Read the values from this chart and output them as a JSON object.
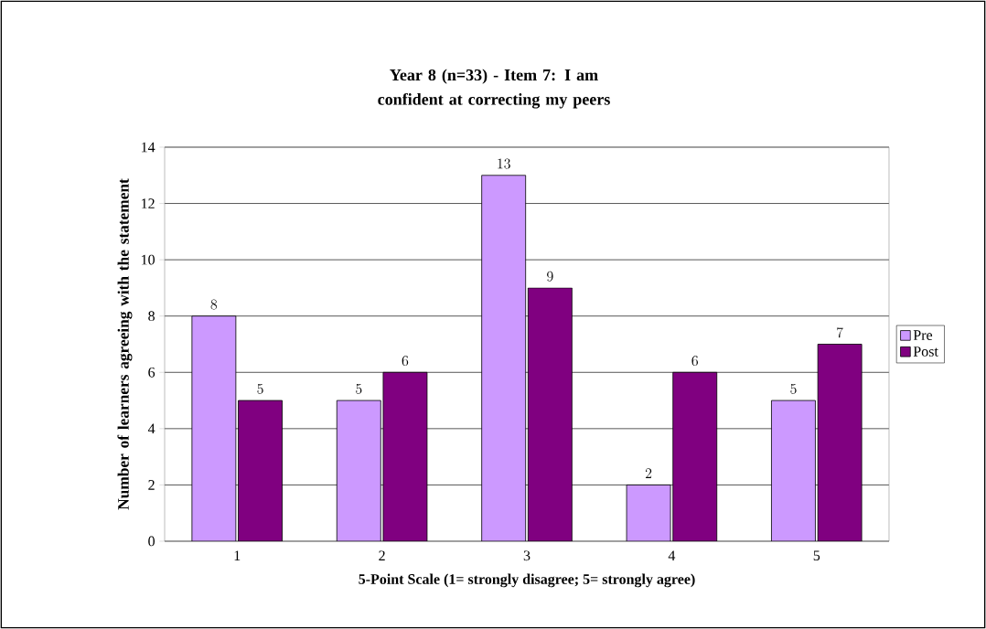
{
  "chart_data": {
    "type": "bar",
    "title": "Year 8 (n=33) - Item 7: I am confident at correcting my peers",
    "xlabel": "5-Point Scale (1= strongly disagree; 5= strongly agree)",
    "ylabel": "Number of learners agreeing with the statement",
    "categories": [
      "1",
      "2",
      "3",
      "4",
      "5"
    ],
    "series": [
      {
        "name": "Pre",
        "color": "#cc99ff",
        "values": [
          8,
          5,
          13,
          2,
          5
        ]
      },
      {
        "name": "Post",
        "color": "#800080",
        "values": [
          5,
          6,
          9,
          6,
          7
        ]
      }
    ],
    "ylim": [
      0,
      14
    ],
    "yticks": [
      0,
      2,
      4,
      6,
      8,
      10,
      12,
      14
    ],
    "grid": "y",
    "legend": "right",
    "data_labels": true
  }
}
